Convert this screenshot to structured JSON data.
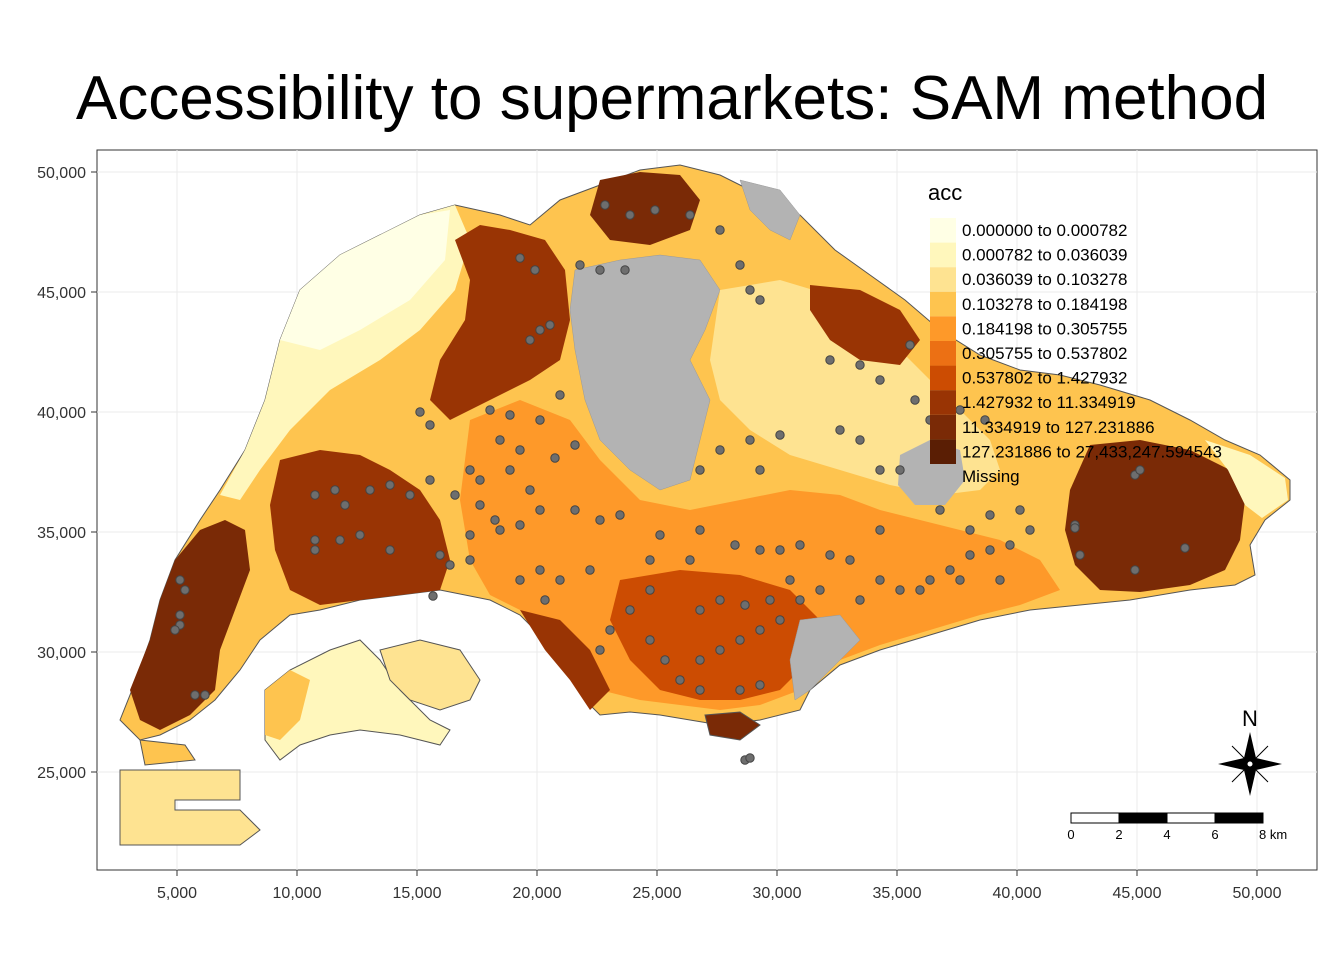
{
  "title": "Accessibility to supermarkets: SAM method",
  "axes": {
    "x_ticks": [
      "5,000",
      "10,000",
      "15,000",
      "20,000",
      "25,000",
      "30,000",
      "35,000",
      "40,000",
      "45,000",
      "50,000"
    ],
    "y_ticks": [
      "50,000",
      "45,000",
      "40,000",
      "35,000",
      "30,000",
      "25,000"
    ]
  },
  "legend": {
    "title": "acc",
    "entries": [
      {
        "label": "0.000000 to 0.000782",
        "color": "#ffffe5"
      },
      {
        "label": "0.000782 to 0.036039",
        "color": "#fff7bc"
      },
      {
        "label": "0.036039 to 0.103278",
        "color": "#fee391"
      },
      {
        "label": "0.103278 to 0.184198",
        "color": "#fec44f"
      },
      {
        "label": "0.184198 to 0.305755",
        "color": "#fe9929"
      },
      {
        "label": "0.305755 to 0.537802",
        "color": "#ec7014"
      },
      {
        "label": "0.537802 to 1.427932",
        "color": "#cc4c02"
      },
      {
        "label": "1.427932 to 11.334919",
        "color": "#993404"
      },
      {
        "label": "11.334919 to 127.231886",
        "color": "#7a2a06"
      },
      {
        "label": "127.231886 to 27,433,247.594543",
        "color": "#5a1e04"
      },
      {
        "label": "Missing",
        "color": "#b3b3b3"
      }
    ]
  },
  "compass": {
    "label": "N"
  },
  "scalebar": {
    "labels": [
      "0",
      "2",
      "4",
      "6",
      "8 km"
    ]
  },
  "colors": {
    "land_missing": "#b3b3b3",
    "supermarket_point": "#6e6e6e",
    "outline": "#555555"
  }
}
